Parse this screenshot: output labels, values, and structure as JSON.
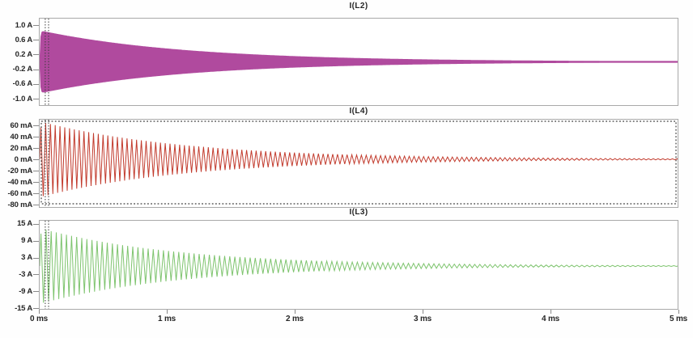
{
  "figure": {
    "background": "#ffffff",
    "frame_color": "#a9a9a9",
    "text_color": "#262626",
    "cursors": {
      "times_ms": [
        0.044,
        0.07
      ],
      "style": "dotted",
      "color": "#3a3a3a"
    }
  },
  "x_axis": {
    "tick_labels": [
      "0 ms",
      "1 ms",
      "2 ms",
      "3 ms",
      "4 ms",
      "5 ms"
    ],
    "tick_values_ms": [
      0,
      1,
      2,
      3,
      4,
      5
    ],
    "range_ms": [
      0,
      5
    ],
    "grid": false
  },
  "chart_data": [
    {
      "type": "line",
      "title": "I(L2)",
      "color": "#b04a9e",
      "render": "filled_envelope",
      "unit": "A",
      "y_tick_labels": [
        "1.0 A",
        "0.6 A",
        "0.2 A",
        "-0.2 A",
        "-0.6 A",
        "-1.0 A"
      ],
      "y_tick_values": [
        1.0,
        0.6,
        0.2,
        -0.2,
        -0.6,
        -1.0
      ],
      "y_range": [
        -1.2,
        1.2
      ],
      "signal": {
        "kind": "exponentially_damped_oscillation",
        "initial_amplitude": 0.85,
        "decay_tau_ms": 1.15,
        "ramp_ms": 0.005,
        "period_ms": 0.0375,
        "frequency_khz": 26.7
      },
      "envelope_samples": {
        "t_ms": [
          0.05,
          0.5,
          1,
          1.5,
          2,
          3,
          4,
          5
        ],
        "amplitude": [
          0.81,
          0.55,
          0.36,
          0.23,
          0.15,
          0.062,
          0.026,
          0.011
        ]
      },
      "selection_marquee": false
    },
    {
      "type": "line",
      "title": "I(L4)",
      "color": "#c23b2d",
      "render": "oscillation_trace",
      "unit": "mA",
      "y_tick_labels": [
        "60 mA",
        "40 mA",
        "20 mA",
        "0 mA",
        "-20 mA",
        "-40 mA",
        "-60 mA",
        "-80 mA"
      ],
      "y_tick_values": [
        60,
        40,
        20,
        0,
        -20,
        -40,
        -60,
        -80
      ],
      "y_range": [
        -86,
        71
      ],
      "signal": {
        "kind": "exponentially_damped_oscillation",
        "initial_amplitude": 67,
        "decay_tau_ms": 1.15,
        "ramp_ms": 0.005,
        "period_ms": 0.0375,
        "frequency_khz": 26.7
      },
      "envelope_samples": {
        "t_ms": [
          0.05,
          0.5,
          1,
          1.5,
          2,
          3,
          4,
          5
        ],
        "amplitude": [
          64,
          43.3,
          28.1,
          18.2,
          11.8,
          4.9,
          2.1,
          0.9
        ]
      },
      "selection_marquee": true
    },
    {
      "type": "line",
      "title": "I(L3)",
      "color": "#7ec46e",
      "render": "oscillation_trace",
      "unit": "A",
      "y_tick_labels": [
        "15 A",
        "9 A",
        "3 A",
        "-3 A",
        "-9 A",
        "-15 A"
      ],
      "y_tick_values": [
        15,
        9,
        3,
        -3,
        -9,
        -15
      ],
      "y_range": [
        -16,
        16.5
      ],
      "signal": {
        "kind": "exponentially_damped_oscillation",
        "initial_amplitude": 13.5,
        "decay_tau_ms": 1.1,
        "ramp_ms": 0.005,
        "period_ms": 0.04,
        "frequency_khz": 25,
        "grid": false
      },
      "envelope_samples": {
        "t_ms": [
          0.05,
          0.5,
          1,
          1.5,
          2,
          3,
          4,
          5
        ],
        "amplitude": [
          12.9,
          8.6,
          5.4,
          3.45,
          2.18,
          0.88,
          0.35,
          0.14
        ]
      },
      "selection_marquee": false
    }
  ]
}
